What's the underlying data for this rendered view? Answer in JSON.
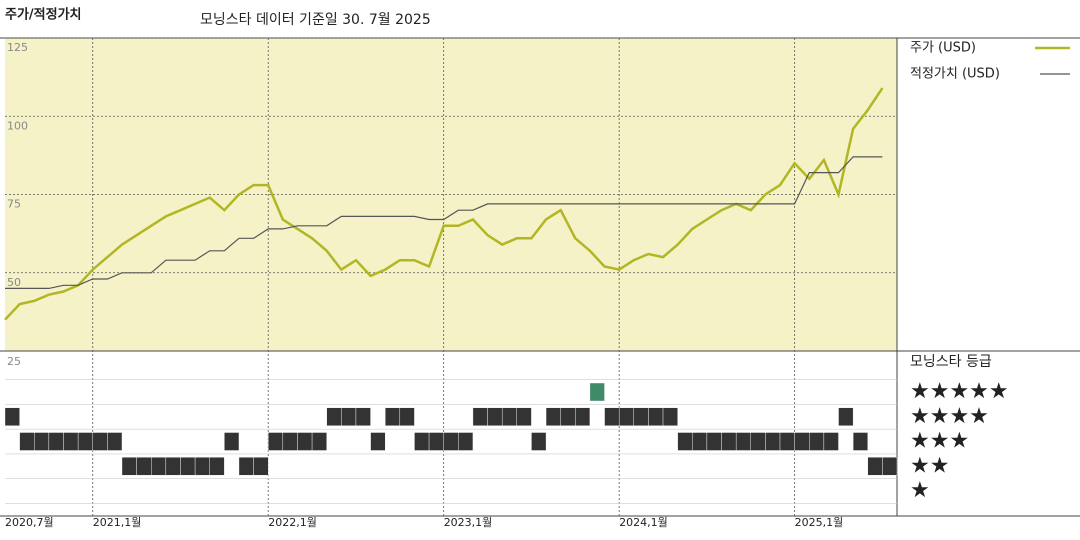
{
  "chart_data": [
    {
      "type": "line",
      "title": "주가/적정가치",
      "subtitle": "모닝스타 데이터 기준일 30. 7월 2025",
      "x": [
        "2020-07",
        "2020-08",
        "2020-09",
        "2020-10",
        "2020-11",
        "2020-12",
        "2021-01",
        "2021-02",
        "2021-03",
        "2021-04",
        "2021-05",
        "2021-06",
        "2021-07",
        "2021-08",
        "2021-09",
        "2021-10",
        "2021-11",
        "2021-12",
        "2022-01",
        "2022-02",
        "2022-03",
        "2022-04",
        "2022-05",
        "2022-06",
        "2022-07",
        "2022-08",
        "2022-09",
        "2022-10",
        "2022-11",
        "2022-12",
        "2023-01",
        "2023-02",
        "2023-03",
        "2023-04",
        "2023-05",
        "2023-06",
        "2023-07",
        "2023-08",
        "2023-09",
        "2023-10",
        "2023-11",
        "2023-12",
        "2024-01",
        "2024-02",
        "2024-03",
        "2024-04",
        "2024-05",
        "2024-06",
        "2024-07",
        "2024-08",
        "2024-09",
        "2024-10",
        "2024-11",
        "2024-12",
        "2025-01",
        "2025-02",
        "2025-03",
        "2025-04",
        "2025-05",
        "2025-06",
        "2025-07"
      ],
      "xlim": [
        "2020-07",
        "2025-08"
      ],
      "series": [
        {
          "name": "주가 (USD)",
          "color": "#b3b624",
          "values": [
            35,
            40,
            41,
            43,
            44,
            46,
            51,
            55,
            59,
            62,
            65,
            68,
            70,
            72,
            74,
            70,
            75,
            78,
            78,
            67,
            64,
            61,
            57,
            51,
            54,
            49,
            51,
            54,
            54,
            52,
            65,
            65,
            67,
            62,
            59,
            61,
            61,
            67,
            70,
            61,
            57,
            52,
            51,
            54,
            56,
            55,
            59,
            64,
            67,
            70,
            72,
            70,
            75,
            78,
            85,
            80,
            86,
            75,
            96,
            102,
            109
          ]
        },
        {
          "name": "적정가치 (USD)",
          "color": "#555555",
          "values": [
            45,
            45,
            45,
            45,
            46,
            46,
            48,
            48,
            50,
            50,
            50,
            54,
            54,
            54,
            57,
            57,
            61,
            61,
            64,
            64,
            65,
            65,
            65,
            68,
            68,
            68,
            68,
            68,
            68,
            67,
            67,
            70,
            70,
            72,
            72,
            72,
            72,
            72,
            72,
            72,
            72,
            72,
            72,
            72,
            72,
            72,
            72,
            72,
            72,
            72,
            72,
            72,
            72,
            72,
            72,
            82,
            82,
            82,
            87,
            87,
            87
          ]
        }
      ],
      "ylim": [
        25,
        125
      ],
      "yticks": [
        50,
        75,
        100,
        125
      ],
      "grid": true
    },
    {
      "type": "rating",
      "title": "모닝스타 등급",
      "axis_label": "25",
      "x": [
        "2020-07",
        "2020-08",
        "2020-09",
        "2020-10",
        "2020-11",
        "2020-12",
        "2021-01",
        "2021-02",
        "2021-03",
        "2021-04",
        "2021-05",
        "2021-06",
        "2021-07",
        "2021-08",
        "2021-09",
        "2021-10",
        "2021-11",
        "2021-12",
        "2022-01",
        "2022-02",
        "2022-03",
        "2022-04",
        "2022-05",
        "2022-06",
        "2022-07",
        "2022-08",
        "2022-09",
        "2022-10",
        "2022-11",
        "2022-12",
        "2023-01",
        "2023-02",
        "2023-03",
        "2023-04",
        "2023-05",
        "2023-06",
        "2023-07",
        "2023-08",
        "2023-09",
        "2023-10",
        "2023-11",
        "2023-12",
        "2024-01",
        "2024-02",
        "2024-03",
        "2024-04",
        "2024-05",
        "2024-06",
        "2024-07",
        "2024-08",
        "2024-09",
        "2024-10",
        "2024-11",
        "2024-12",
        "2025-01",
        "2025-02",
        "2025-03",
        "2025-04",
        "2025-05",
        "2025-06",
        "2025-07"
      ],
      "values": [
        4,
        3,
        3,
        3,
        3,
        3,
        3,
        3,
        2,
        2,
        2,
        2,
        2,
        2,
        2,
        3,
        2,
        2,
        3,
        3,
        3,
        3,
        4,
        4,
        4,
        3,
        4,
        4,
        3,
        3,
        3,
        3,
        4,
        4,
        4,
        4,
        3,
        4,
        4,
        4,
        5,
        4,
        4,
        4,
        4,
        4,
        3,
        3,
        3,
        3,
        3,
        3,
        3,
        3,
        3,
        3,
        3,
        4,
        3,
        2,
        2
      ],
      "categories": [
        "★",
        "★★",
        "★★★",
        "★★★★",
        "★★★★★"
      ],
      "color": "#333333",
      "highlight_color": "#3f8a68",
      "xticks": [
        {
          "value": "2020-07",
          "label": "2020,7월"
        },
        {
          "value": "2021-01",
          "label": "2021,1월"
        },
        {
          "value": "2022-01",
          "label": "2022,1월"
        },
        {
          "value": "2023-01",
          "label": "2023,1월"
        },
        {
          "value": "2024-01",
          "label": "2024,1월"
        },
        {
          "value": "2025-01",
          "label": "2025,1월"
        }
      ]
    }
  ]
}
